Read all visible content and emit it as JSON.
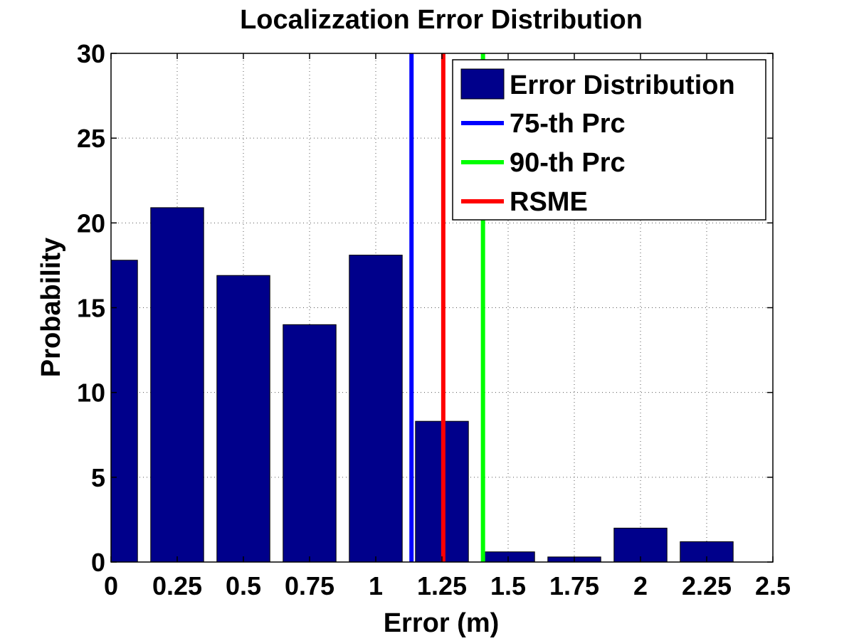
{
  "chart_data": {
    "type": "bar",
    "title": "Localizzation Error Distribution",
    "xlabel": "Error (m)",
    "ylabel": "Probability",
    "xlim": [
      0,
      2.5
    ],
    "ylim": [
      0,
      30
    ],
    "grid": true,
    "legend_position": "top-right",
    "x_ticks": [
      "0",
      "0.25",
      "0.5",
      "0.75",
      "1",
      "1.25",
      "1.5",
      "1.75",
      "2",
      "2.25",
      "2.5"
    ],
    "y_ticks": [
      "0",
      "5",
      "10",
      "15",
      "20",
      "25",
      "30"
    ],
    "bar_width": 0.2,
    "bars": [
      {
        "x": 0.0,
        "value": 17.8
      },
      {
        "x": 0.25,
        "value": 20.9
      },
      {
        "x": 0.5,
        "value": 16.9
      },
      {
        "x": 0.75,
        "value": 14.0
      },
      {
        "x": 1.0,
        "value": 18.1
      },
      {
        "x": 1.25,
        "value": 8.3
      },
      {
        "x": 1.5,
        "value": 0.6
      },
      {
        "x": 1.75,
        "value": 0.3
      },
      {
        "x": 2.0,
        "value": 2.0
      },
      {
        "x": 2.25,
        "value": 1.2
      }
    ],
    "bar_series_name": "Error Distribution",
    "bar_color": "#00008B",
    "lines": [
      {
        "name": "75-th Prc",
        "x": 1.135,
        "color": "#0000FF"
      },
      {
        "name": "90-th Prc",
        "x": 1.405,
        "color": "#00FF00"
      },
      {
        "name": "RSME",
        "x": 1.255,
        "color": "#FF0000"
      }
    ]
  }
}
